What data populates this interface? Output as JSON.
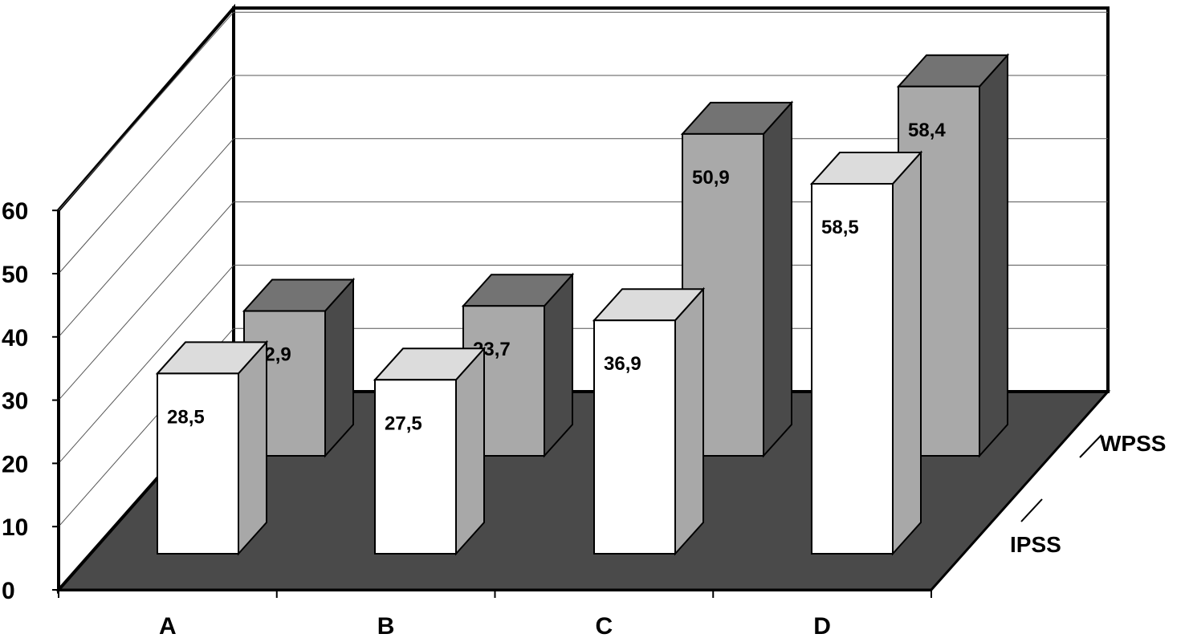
{
  "chart_data": {
    "type": "bar",
    "categories": [
      "A",
      "B",
      "C",
      "D"
    ],
    "series": [
      {
        "name": "IPSS",
        "values": [
          28.5,
          27.5,
          36.9,
          58.5
        ],
        "labels": [
          "28,5",
          "27,5",
          "36,9",
          "58,5"
        ],
        "color": "#ffffff"
      },
      {
        "name": "WPSS",
        "values": [
          22.9,
          23.7,
          50.9,
          58.4
        ],
        "labels": [
          "22,9",
          "23,7",
          "50,9",
          "58,4"
        ],
        "color": "#a9a9a9"
      }
    ],
    "yticks": [
      "0",
      "10",
      "20",
      "30",
      "40",
      "50",
      "60"
    ],
    "ylim": [
      0,
      60
    ],
    "grid": true,
    "floor_color": "#4a4a4a",
    "three_d": true
  }
}
